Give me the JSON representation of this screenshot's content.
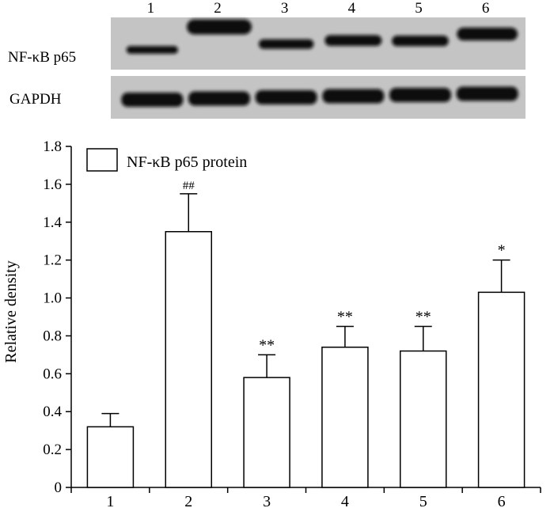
{
  "blot": {
    "lane_labels": [
      "1",
      "2",
      "3",
      "4",
      "5",
      "6"
    ],
    "rows": [
      {
        "label": "NF-κB p65",
        "band_intensity": [
          0.32,
          1.35,
          0.58,
          0.74,
          0.72,
          1.03
        ]
      },
      {
        "label": "GAPDH",
        "band_intensity": [
          1,
          1,
          1,
          1,
          1,
          1
        ]
      }
    ]
  },
  "chart_data": {
    "type": "bar",
    "categories": [
      "1",
      "2",
      "3",
      "4",
      "5",
      "6"
    ],
    "series": [
      {
        "name": "NF-κB p65 protein",
        "values": [
          0.32,
          1.35,
          0.58,
          0.74,
          0.72,
          1.03
        ],
        "errors": [
          0.07,
          0.2,
          0.12,
          0.11,
          0.13,
          0.17
        ],
        "annotations": [
          "",
          "##",
          "**",
          "**",
          "**",
          "*"
        ]
      }
    ],
    "xlabel": "",
    "ylabel": "Relative density",
    "ylim": [
      0,
      1.8
    ],
    "yticks": [
      "0",
      "0.2",
      "0.4",
      "0.6",
      "0.8",
      "1.0",
      "1.2",
      "1.4",
      "1.6",
      "1.8"
    ],
    "ytick_values": [
      0,
      0.2,
      0.4,
      0.6,
      0.8,
      1.0,
      1.2,
      1.4,
      1.6,
      1.8
    ],
    "legend_position": "top-left",
    "grid": false,
    "colors": {
      "bar_fill": "#ffffff",
      "bar_stroke": "#000000",
      "blot_bg": "#c4c4c4",
      "band": "#0a0a0a"
    }
  }
}
